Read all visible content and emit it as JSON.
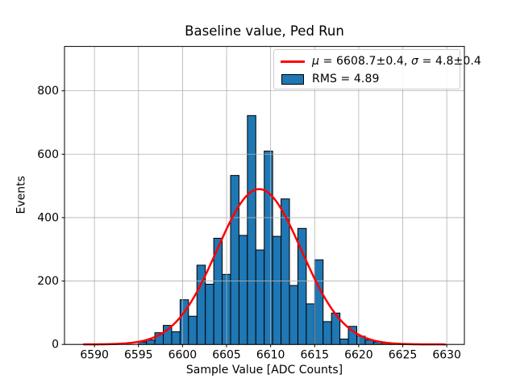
{
  "chart_data": {
    "type": "bar",
    "subtype": "histogram_with_gaussian_fit",
    "title": "Baseline value, Ped Run",
    "xlabel": "Sample Value [ADC Counts]",
    "ylabel": "Events",
    "xlim": [
      6586.6,
      6632.0
    ],
    "ylim": [
      0,
      940
    ],
    "x_ticks": [
      6590,
      6595,
      6600,
      6605,
      6610,
      6615,
      6620,
      6625,
      6630
    ],
    "y_ticks": [
      0,
      200,
      400,
      600,
      800
    ],
    "grid": true,
    "grid_color": "#b0b0b0",
    "axes_color": "#000000",
    "histogram": {
      "x_start": 6594.95,
      "bin_width": 0.955,
      "counts": [
        8,
        14,
        37,
        60,
        40,
        141,
        89,
        250,
        190,
        335,
        221,
        533,
        344,
        722,
        298,
        610,
        341,
        459,
        186,
        366,
        128,
        267,
        72,
        99,
        17,
        57,
        26,
        14,
        8,
        5,
        2,
        1
      ],
      "fill_color": "#1f77b4",
      "edge_color": "#000000"
    },
    "fit": {
      "shape": "gaussian",
      "mu": 6608.7,
      "sigma": 4.8,
      "amplitude": 490,
      "x_min": 6588.8,
      "x_max": 6629.8,
      "color": "#ff0000",
      "line_width": 2.5
    },
    "legend": {
      "fit_label": {
        "mu_symbol": "μ",
        "mu_value": " = 6608.7±0.4, ",
        "sigma_symbol": "σ",
        "sigma_value": " = 4.8±0.4"
      },
      "hist_label": "RMS = 4.89"
    }
  }
}
